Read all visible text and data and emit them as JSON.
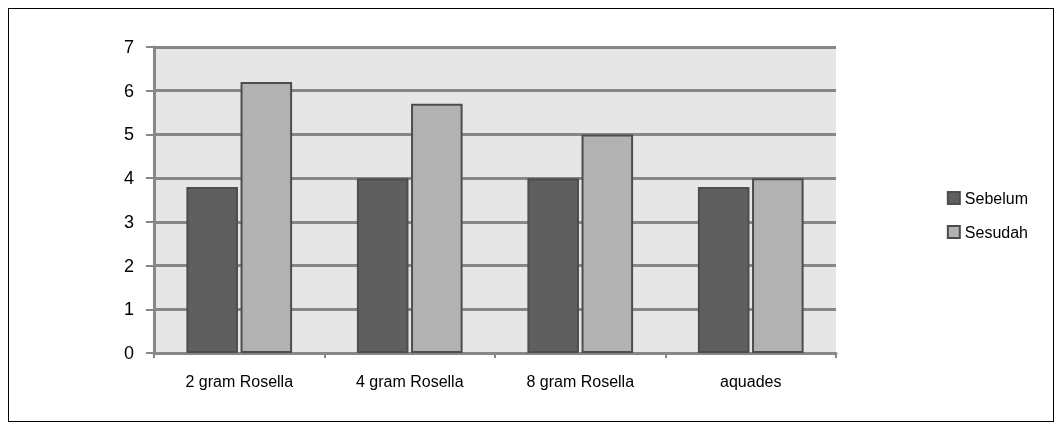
{
  "chart_data": {
    "type": "bar",
    "categories": [
      "2 gram Rosella",
      "4 gram Rosella",
      "8 gram Rosella",
      "aquades"
    ],
    "series": [
      {
        "name": "Sebelum",
        "color": "#5f5f5f",
        "values": [
          3.8,
          4.0,
          4.0,
          3.8
        ]
      },
      {
        "name": "Sesudah",
        "color": "#b2b2b2",
        "values": [
          6.2,
          5.7,
          5.0,
          4.0
        ]
      }
    ],
    "ylim": [
      0,
      7
    ],
    "yticks": [
      0,
      1,
      2,
      3,
      4,
      5,
      6,
      7
    ],
    "grid": "y",
    "legend": "right"
  }
}
